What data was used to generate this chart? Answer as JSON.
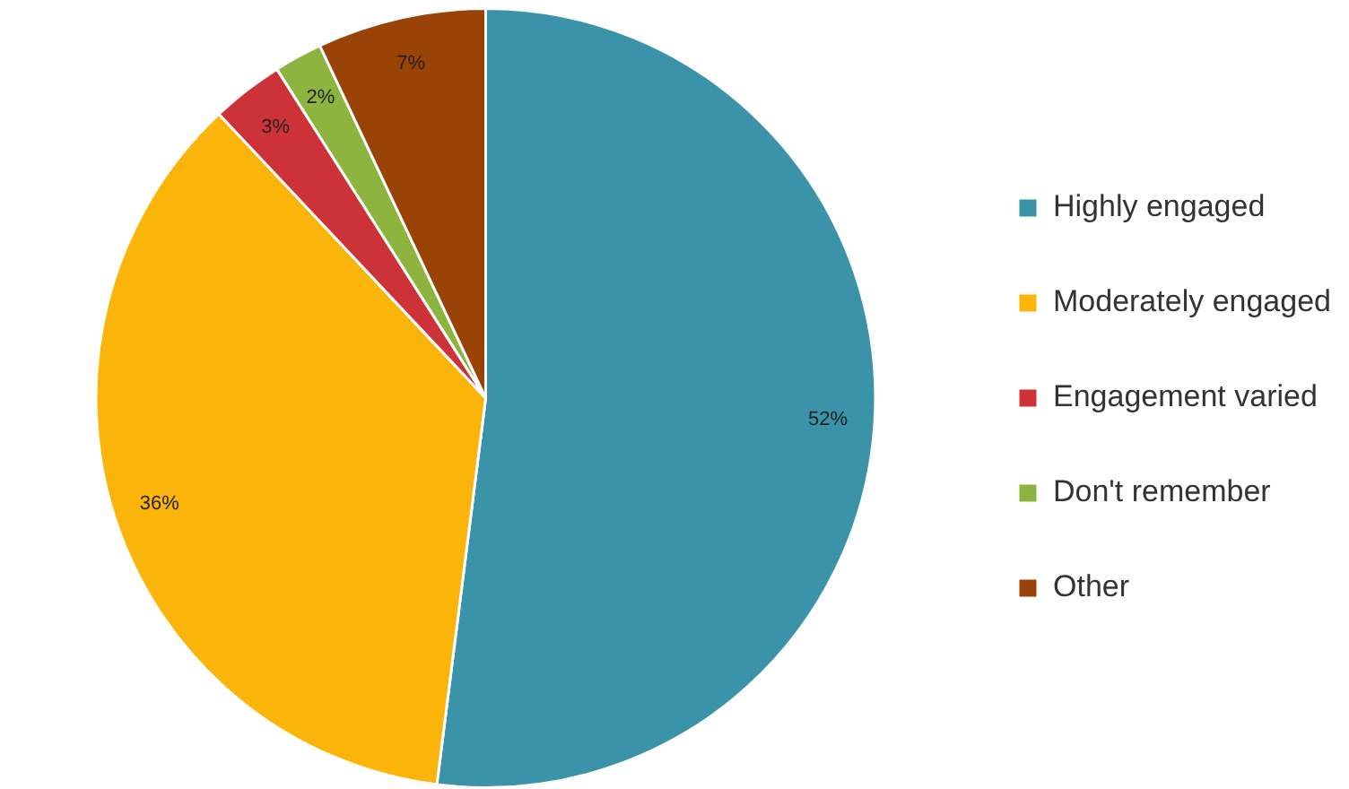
{
  "chart_data": {
    "type": "pie",
    "categories": [
      "Highly engaged",
      "Moderately engaged",
      "Engagement varied",
      "Don't remember",
      "Other"
    ],
    "values": [
      52,
      36,
      3,
      2,
      7
    ],
    "colors": [
      "#3a93a8",
      "#fbb40a",
      "#cc3238",
      "#8db43e",
      "#9a4306"
    ],
    "value_labels": [
      "52%",
      "36%",
      "3%",
      "2%",
      "7%"
    ],
    "legend": "right"
  }
}
